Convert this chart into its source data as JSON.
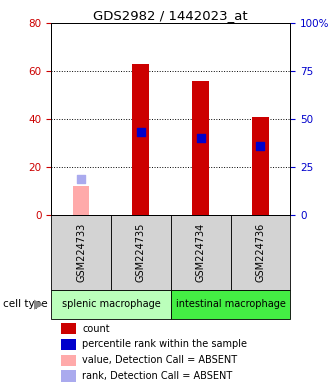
{
  "title": "GDS2982 / 1442023_at",
  "samples": [
    "GSM224733",
    "GSM224735",
    "GSM224734",
    "GSM224736"
  ],
  "cell_type_groups": [
    {
      "label": "splenic macrophage",
      "cols": [
        0,
        1
      ],
      "color": "#bbffbb"
    },
    {
      "label": "intestinal macrophage",
      "cols": [
        2,
        3
      ],
      "color": "#44ee44"
    }
  ],
  "count_values": [
    null,
    63,
    56,
    41
  ],
  "count_absent": [
    12,
    null,
    null,
    null
  ],
  "percentile_values": [
    null,
    43,
    40,
    36
  ],
  "percentile_absent": [
    19,
    null,
    null,
    null
  ],
  "detection_absent": [
    true,
    false,
    false,
    false
  ],
  "ylim_left": [
    0,
    80
  ],
  "ylim_right": [
    0,
    100
  ],
  "yticks_left": [
    0,
    20,
    40,
    60,
    80
  ],
  "yticks_right": [
    0,
    25,
    50,
    75,
    100
  ],
  "ytick_labels_right": [
    "0",
    "25",
    "50",
    "75",
    "100%"
  ],
  "left_axis_color": "#cc0000",
  "right_axis_color": "#0000cc",
  "bar_color_present": "#cc0000",
  "bar_color_absent": "#ffaaaa",
  "dot_color_present": "#0000cc",
  "dot_color_absent": "#aaaaee",
  "bar_width": 0.28,
  "dot_size": 28,
  "legend_items": [
    {
      "color": "#cc0000",
      "label": "count"
    },
    {
      "color": "#0000cc",
      "label": "percentile rank within the sample"
    },
    {
      "color": "#ffaaaa",
      "label": "value, Detection Call = ABSENT"
    },
    {
      "color": "#aaaaee",
      "label": "rank, Detection Call = ABSENT"
    }
  ]
}
